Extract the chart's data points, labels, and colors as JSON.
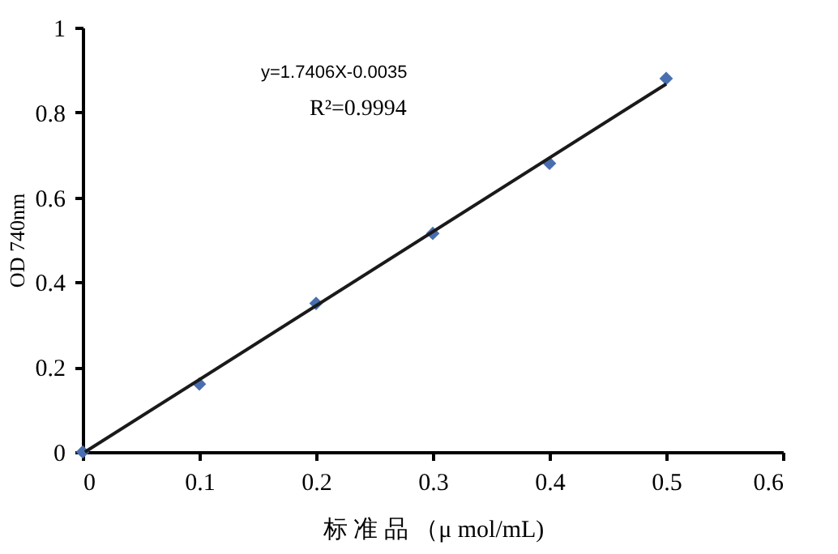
{
  "chart_data": {
    "type": "scatter",
    "xlabel": "标 准 品 （μ mol/mL)",
    "ylabel": "OD 740nm",
    "annotations": [
      "y=1.7406X-0.0035",
      "R²=0.9994"
    ],
    "xlim": [
      0,
      0.6
    ],
    "xticks": [
      0,
      0.1,
      0.2,
      0.3,
      0.4,
      0.5,
      0.6
    ],
    "ylim": [
      0,
      1
    ],
    "yticks": [
      0,
      0.2,
      0.4,
      0.6,
      0.8,
      1
    ],
    "grid": false,
    "marker": "diamond",
    "series": [
      {
        "color": "#4a6fb0",
        "x": [
          0,
          0.1,
          0.2,
          0.3,
          0.4,
          0.5
        ],
        "values": [
          0,
          0.16,
          0.35,
          0.515,
          0.68,
          0.88
        ]
      },
      {
        "type": "line",
        "color": "#1a1a1a",
        "x": [
          0.002,
          0.5
        ],
        "values": [
          0,
          0.867
        ],
        "line_style": "solid",
        "marker": "none"
      }
    ]
  }
}
